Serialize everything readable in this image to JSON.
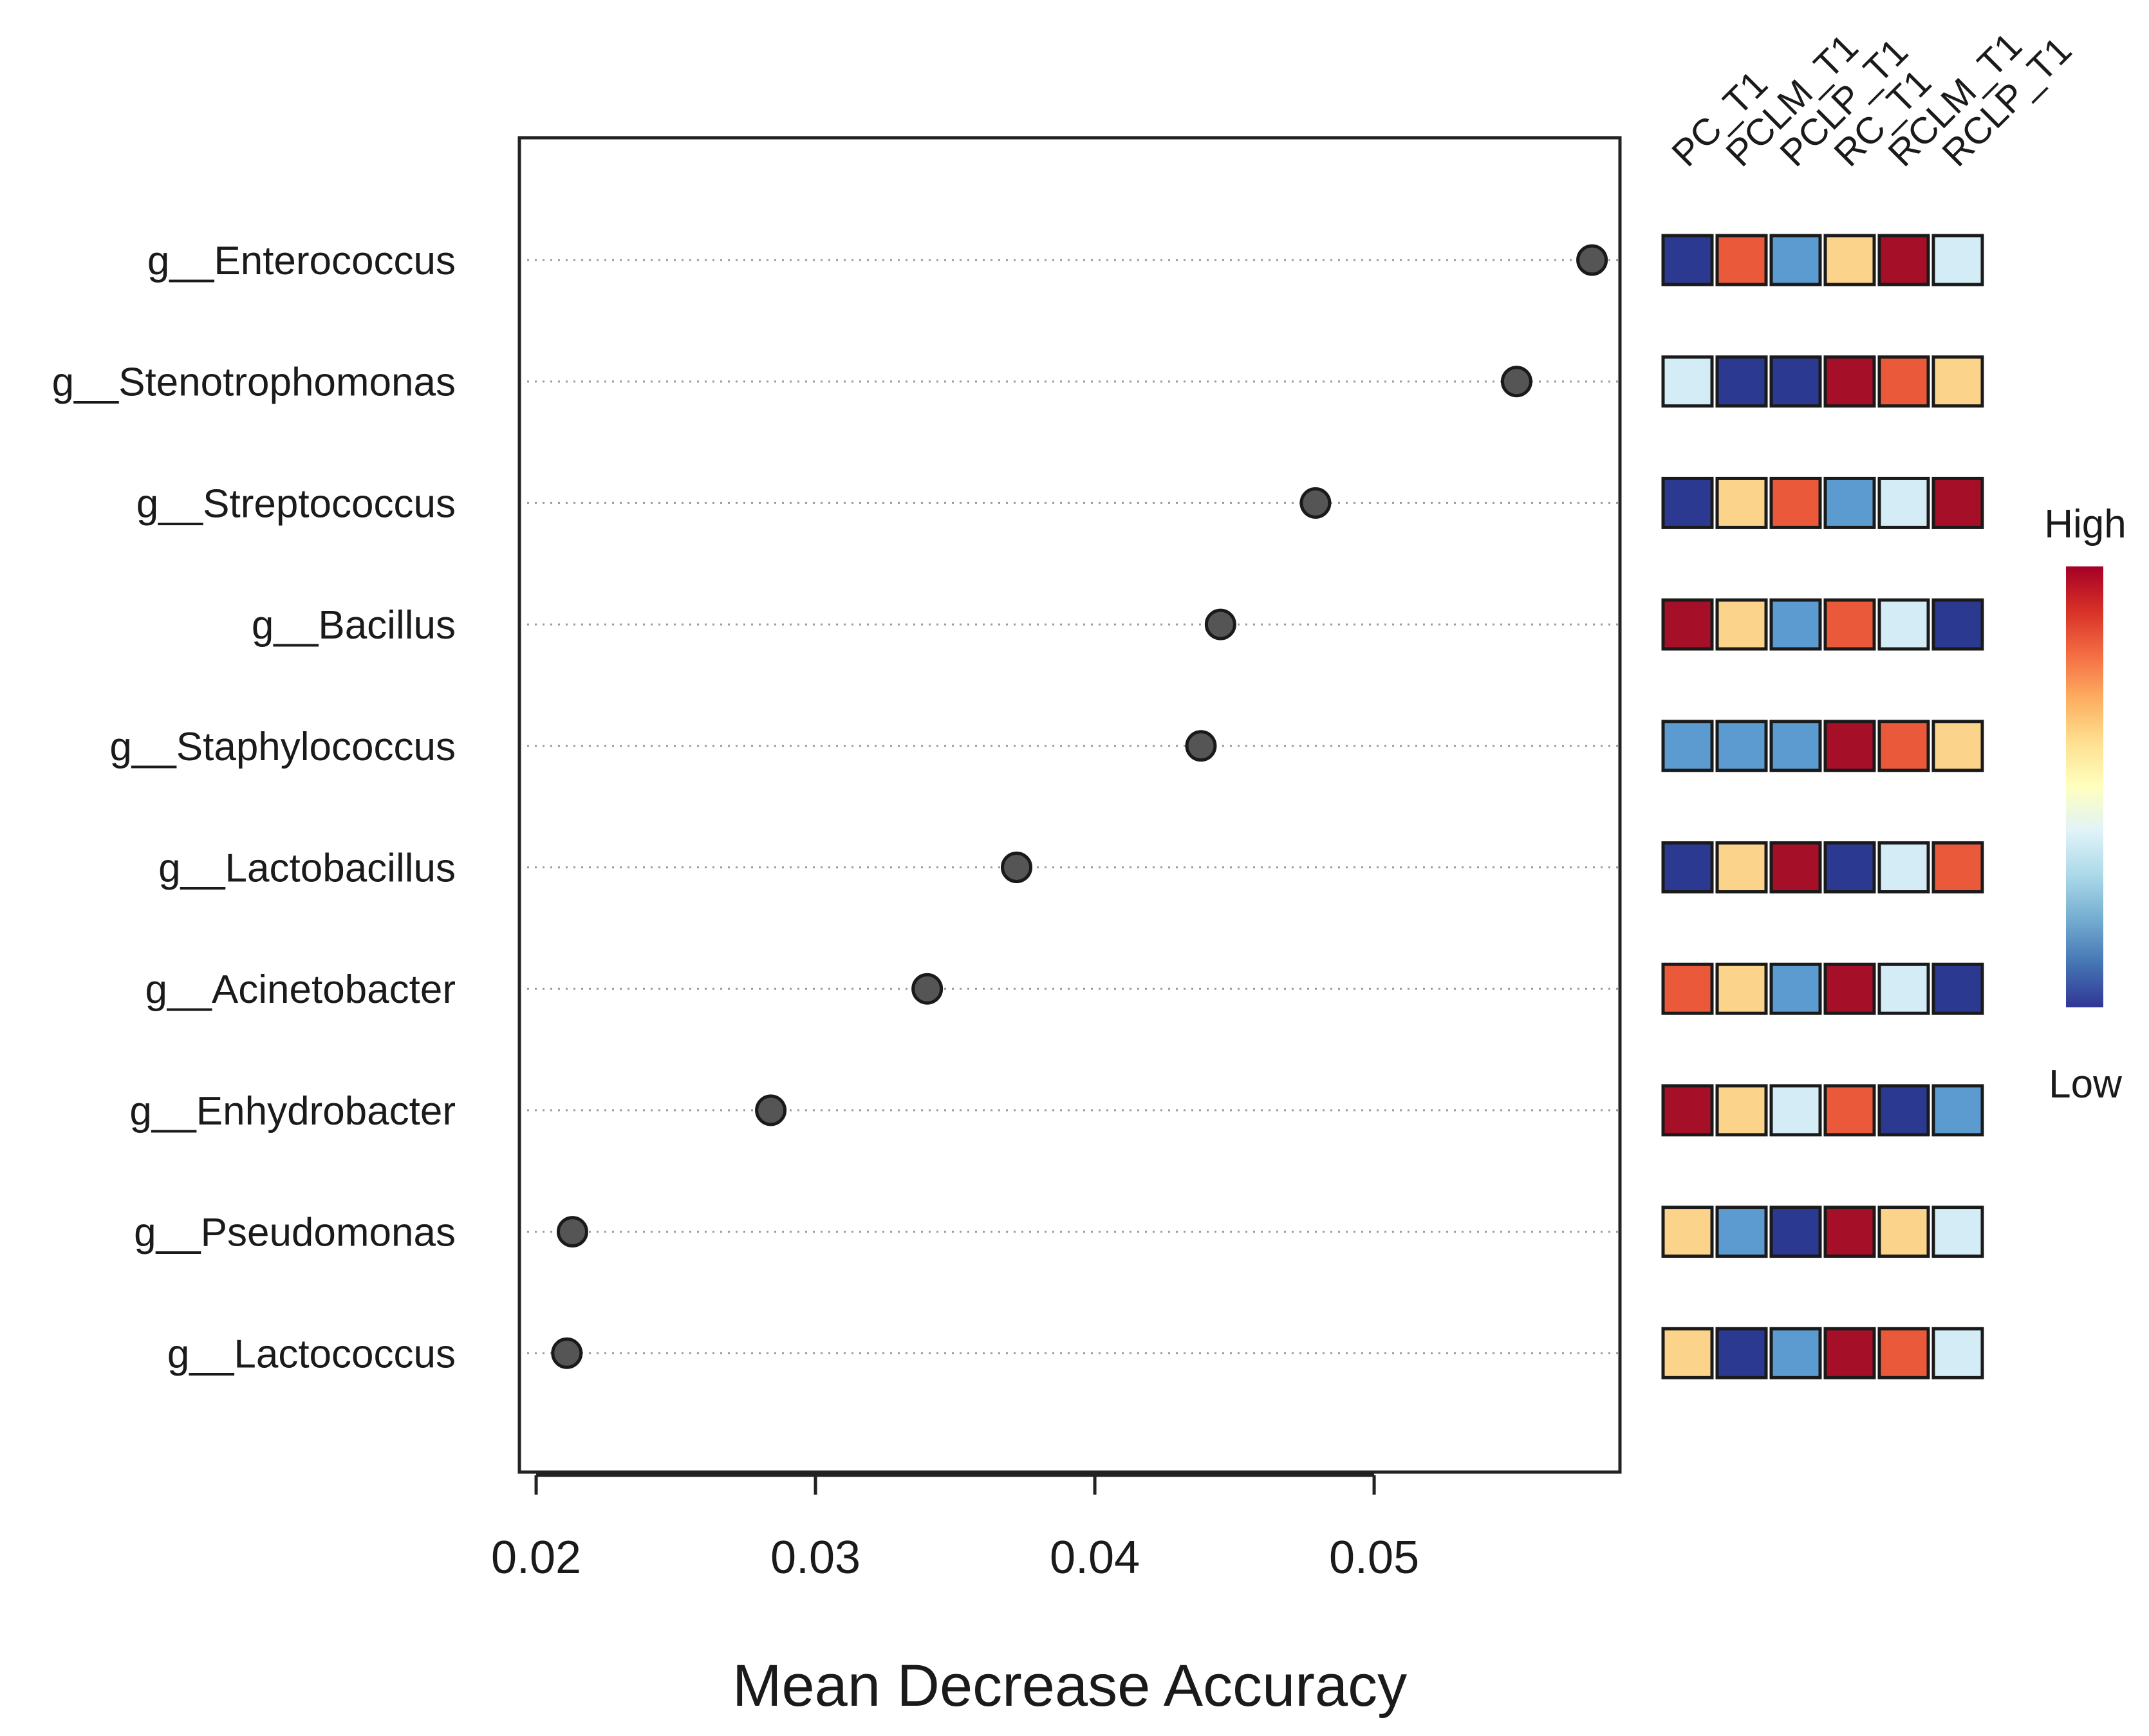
{
  "chart_data": {
    "type": "scatter",
    "subtype": "dot-plot-with-heatmap",
    "xlabel": "Mean Decrease Accuracy",
    "xlim": [
      0.0194,
      0.0588
    ],
    "xticks": [
      {
        "value": 0.02,
        "label": "0.02"
      },
      {
        "value": 0.03,
        "label": "0.03"
      },
      {
        "value": 0.04,
        "label": "0.04"
      },
      {
        "value": 0.05,
        "label": "0.05"
      }
    ],
    "grid": "dotted-horizontal",
    "categories": [
      "g__Enterococcus",
      "g__Stenotrophomonas",
      "g__Streptococcus",
      "g__Bacillus",
      "g__Staphylococcus",
      "g__Lactobacillus",
      "g__Acinetobacter",
      "g__Enhydrobacter",
      "g__Pseudomonas",
      "g__Lactococcus"
    ],
    "values": [
      0.0578,
      0.0551,
      0.0479,
      0.0445,
      0.0438,
      0.0372,
      0.034,
      0.0284,
      0.0213,
      0.0211
    ],
    "heatmap": {
      "columns": [
        "PC_T1",
        "PCLM_T1",
        "PCLP_T1",
        "RC_T1",
        "RCLM_T1",
        "RCLP_T1"
      ],
      "levels": [
        [
          0,
          4,
          1,
          3,
          5,
          2
        ],
        [
          2,
          0,
          0,
          5,
          4,
          3
        ],
        [
          0,
          3,
          4,
          1,
          2,
          5
        ],
        [
          5,
          3,
          1,
          4,
          2,
          0
        ],
        [
          1,
          1,
          1,
          5,
          4,
          3
        ],
        [
          0,
          3,
          5,
          0,
          2,
          4
        ],
        [
          4,
          3,
          1,
          5,
          2,
          0
        ],
        [
          5,
          3,
          2,
          4,
          0,
          1
        ],
        [
          3,
          1,
          0,
          5,
          3,
          2
        ],
        [
          3,
          0,
          1,
          5,
          4,
          2
        ]
      ],
      "level_colors": [
        "#2b3990",
        "#5b9bd0",
        "#d4ecf6",
        "#fbd38a",
        "#ea5a3a",
        "#a50f27"
      ]
    },
    "legend": {
      "high_label": "High",
      "low_label": "Low",
      "placement": "right",
      "gradient_colors": [
        "#a50026",
        "#d73027",
        "#f46d43",
        "#fdae61",
        "#fee090",
        "#ffffbf",
        "#e0f3f8",
        "#abd9e9",
        "#74add1",
        "#4575b4",
        "#313695"
      ]
    },
    "colors": {
      "point_fill": "#555555",
      "point_stroke": "#1a1a1a",
      "axis": "#222222",
      "grid": "#9a9a9a"
    }
  }
}
